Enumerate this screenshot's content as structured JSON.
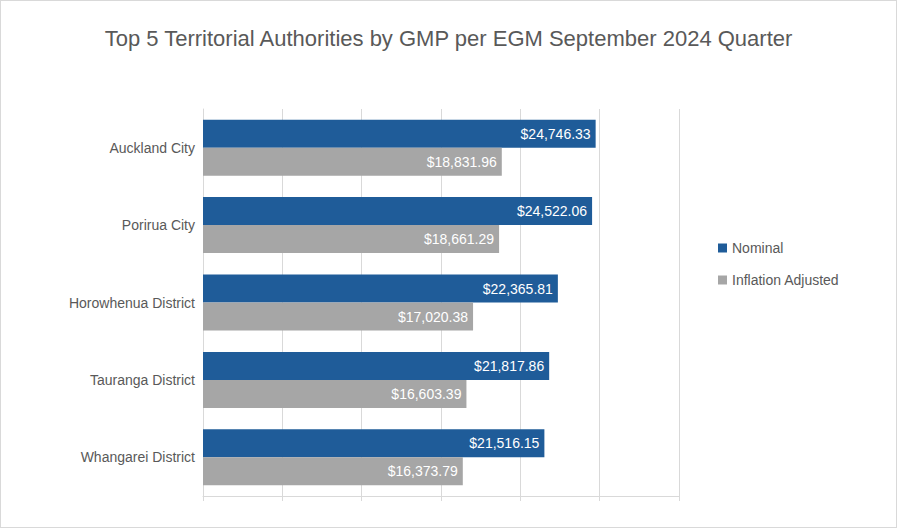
{
  "chart_data": {
    "type": "bar",
    "orientation": "horizontal",
    "title": "Top 5 Territorial Authorities by GMP per EGM September 2024 Quarter",
    "categories": [
      "Auckland City",
      "Porirua City",
      "Horowhenua District",
      "Tauranga District",
      "Whangarei District"
    ],
    "series": [
      {
        "name": "Nominal",
        "color": "#1f5c99",
        "values": [
          24746.33,
          24522.06,
          22365.81,
          21817.86,
          21516.15
        ],
        "value_labels": [
          "$24,746.33",
          "$24,522.06",
          "$22,365.81",
          "$21,817.86",
          "$21,516.15"
        ]
      },
      {
        "name": "Inflation Adjusted",
        "color": "#a6a6a6",
        "values": [
          18831.96,
          18661.29,
          17020.38,
          16603.39,
          16373.79
        ],
        "value_labels": [
          "$18,831.96",
          "$18,661.29",
          "$17,020.38",
          "$16,603.39",
          "$16,373.79"
        ]
      }
    ],
    "xlim": [
      0,
      30000
    ],
    "xticks": [
      0,
      5000,
      10000,
      15000,
      20000,
      25000,
      30000
    ],
    "grid": true,
    "legend": "right",
    "data_labels": true,
    "tick_labels": "y"
  }
}
